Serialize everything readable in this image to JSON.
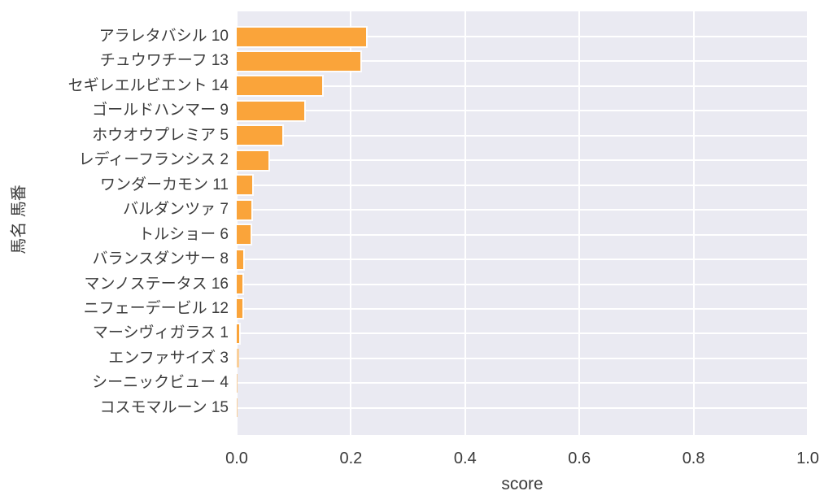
{
  "theme": {
    "figure_background": "#ffffff",
    "plot_background": "#eaeaf2",
    "grid_color": "#ffffff",
    "bar_color": "#faa43a",
    "bar_thin_color": "#f9cf9a",
    "text_color": "#3b3b3b"
  },
  "chart_data": {
    "type": "bar",
    "orientation": "horizontal",
    "style": "seaborn-darkgrid",
    "title": "",
    "xlabel": "score",
    "ylabel": "馬名 馬番",
    "xlim": [
      0.0,
      1.0
    ],
    "grid": true,
    "legend": false,
    "xticks": [
      {
        "value": 0.0,
        "label": "0.0"
      },
      {
        "value": 0.2,
        "label": "0.2"
      },
      {
        "value": 0.4,
        "label": "0.4"
      },
      {
        "value": 0.6,
        "label": "0.6"
      },
      {
        "value": 0.8,
        "label": "0.8"
      },
      {
        "value": 1.0,
        "label": "1.0"
      }
    ],
    "categories": [
      "アラレタバシル 10",
      "チュウワチーフ 13",
      "セギレエルビエント 14",
      "ゴールドハンマー 9",
      "ホウオウプレミア 5",
      "レディーフランシス 2",
      "ワンダーカモン 11",
      "バルダンツァ 7",
      "トルショー 6",
      "バランスダンサー 8",
      "マンノステータス 16",
      "ニフェーデービル 12",
      "マーシヴィガラス 1",
      "エンファサイズ 3",
      "シーニックビュー 4",
      "コスモマルーン 15"
    ],
    "values": [
      0.227,
      0.217,
      0.15,
      0.118,
      0.08,
      0.056,
      0.027,
      0.025,
      0.024,
      0.0115,
      0.01,
      0.0095,
      0.0045,
      0.004,
      0.0015,
      0.0013
    ]
  }
}
